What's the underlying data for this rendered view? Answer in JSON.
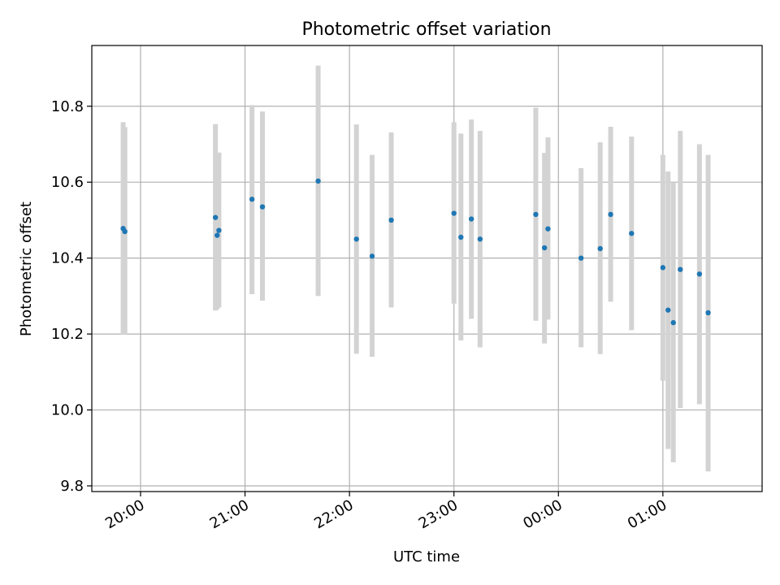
{
  "chart_data": {
    "type": "scatter",
    "title": "Photometric offset variation",
    "xlabel": "UTC time",
    "ylabel": "Photometric offset",
    "x_unit": "UTC time",
    "xlim": [
      "19:32",
      "01:57"
    ],
    "ylim": [
      9.785,
      10.96
    ],
    "grid": true,
    "x_ticks": [
      "20:00",
      "21:00",
      "22:00",
      "23:00",
      "00:00",
      "01:00"
    ],
    "y_ticks": [
      9.8,
      10.0,
      10.2,
      10.4,
      10.6,
      10.8
    ],
    "y_tick_labels": [
      "9.8",
      "10.0",
      "10.2",
      "10.4",
      "10.6",
      "10.8"
    ],
    "colors": {
      "points": "#1f77b4",
      "errorbars": "#d3d3d3",
      "grid": "#b0b0b0"
    },
    "points": [
      {
        "t": "19:50",
        "y": 10.478,
        "lo": 10.198,
        "hi": 10.758
      },
      {
        "t": "19:51",
        "y": 10.47,
        "lo": 10.2,
        "hi": 10.745
      },
      {
        "t": "20:43",
        "y": 10.507,
        "lo": 10.262,
        "hi": 10.753
      },
      {
        "t": "20:44",
        "y": 10.46,
        "lo": 10.265,
        "hi": 10.67
      },
      {
        "t": "20:45",
        "y": 10.473,
        "lo": 10.27,
        "hi": 10.678
      },
      {
        "t": "21:04",
        "y": 10.555,
        "lo": 10.305,
        "hi": 10.803
      },
      {
        "t": "21:10",
        "y": 10.535,
        "lo": 10.288,
        "hi": 10.786
      },
      {
        "t": "21:42",
        "y": 10.603,
        "lo": 10.3,
        "hi": 10.907
      },
      {
        "t": "22:04",
        "y": 10.45,
        "lo": 10.148,
        "hi": 10.752
      },
      {
        "t": "22:13",
        "y": 10.405,
        "lo": 10.14,
        "hi": 10.672
      },
      {
        "t": "22:24",
        "y": 10.5,
        "lo": 10.27,
        "hi": 10.731
      },
      {
        "t": "23:00",
        "y": 10.518,
        "lo": 10.28,
        "hi": 10.758
      },
      {
        "t": "23:04",
        "y": 10.455,
        "lo": 10.183,
        "hi": 10.728
      },
      {
        "t": "23:10",
        "y": 10.503,
        "lo": 10.24,
        "hi": 10.765
      },
      {
        "t": "23:15",
        "y": 10.45,
        "lo": 10.165,
        "hi": 10.735
      },
      {
        "t": "23:47",
        "y": 10.515,
        "lo": 10.235,
        "hi": 10.796
      },
      {
        "t": "23:52",
        "y": 10.427,
        "lo": 10.175,
        "hi": 10.677
      },
      {
        "t": "23:54",
        "y": 10.477,
        "lo": 10.238,
        "hi": 10.718
      },
      {
        "t": "00:13",
        "y": 10.4,
        "lo": 10.165,
        "hi": 10.637
      },
      {
        "t": "00:24",
        "y": 10.425,
        "lo": 10.147,
        "hi": 10.705
      },
      {
        "t": "00:30",
        "y": 10.515,
        "lo": 10.285,
        "hi": 10.746
      },
      {
        "t": "00:42",
        "y": 10.465,
        "lo": 10.21,
        "hi": 10.72
      },
      {
        "t": "01:00",
        "y": 10.375,
        "lo": 10.077,
        "hi": 10.672
      },
      {
        "t": "01:03",
        "y": 10.263,
        "lo": 9.897,
        "hi": 10.628
      },
      {
        "t": "01:06",
        "y": 10.23,
        "lo": 9.862,
        "hi": 10.6
      },
      {
        "t": "01:10",
        "y": 10.37,
        "lo": 10.005,
        "hi": 10.735
      },
      {
        "t": "01:21",
        "y": 10.358,
        "lo": 10.015,
        "hi": 10.7
      },
      {
        "t": "01:26",
        "y": 10.256,
        "lo": 9.838,
        "hi": 10.672
      }
    ]
  }
}
